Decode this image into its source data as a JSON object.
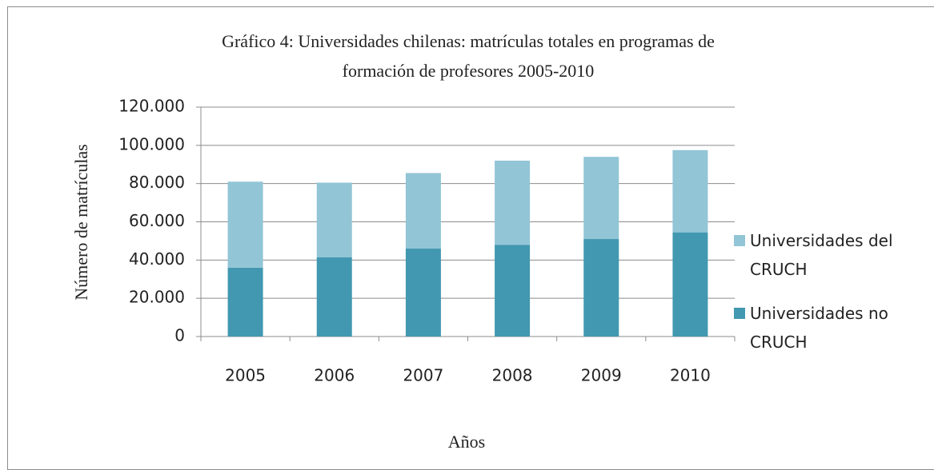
{
  "chart_data": {
    "type": "stacked_bar",
    "title": "Gráfico 4: Universidades chilenas: matrículas totales en programas de formación de profesores 2005-2010",
    "x_label": "Años",
    "y_label": "Número de matrículas",
    "categories": [
      "2005",
      "2006",
      "2007",
      "2008",
      "2009",
      "2010"
    ],
    "series": [
      {
        "name": "Universidades no CRUCH",
        "color": "#4298b0",
        "values": [
          36000,
          41500,
          46000,
          48000,
          51000,
          54500
        ]
      },
      {
        "name": "Universidades del CRUCH",
        "color": "#92c5d6",
        "values": [
          45000,
          39000,
          39500,
          44000,
          43000,
          43000
        ]
      }
    ],
    "ylim": [
      0,
      120000
    ],
    "yticks": [
      0,
      {
        "value": 20000,
        "label": "20.000"
      },
      {
        "value": 40000,
        "label": "40.000"
      },
      {
        "value": 60000,
        "label": "60.000"
      },
      {
        "value": 80000,
        "label": "80.000"
      },
      {
        "value": 100000,
        "label": "100.000"
      },
      {
        "value": 120000,
        "label": "120.000"
      }
    ],
    "grid": true,
    "legend": "right"
  }
}
